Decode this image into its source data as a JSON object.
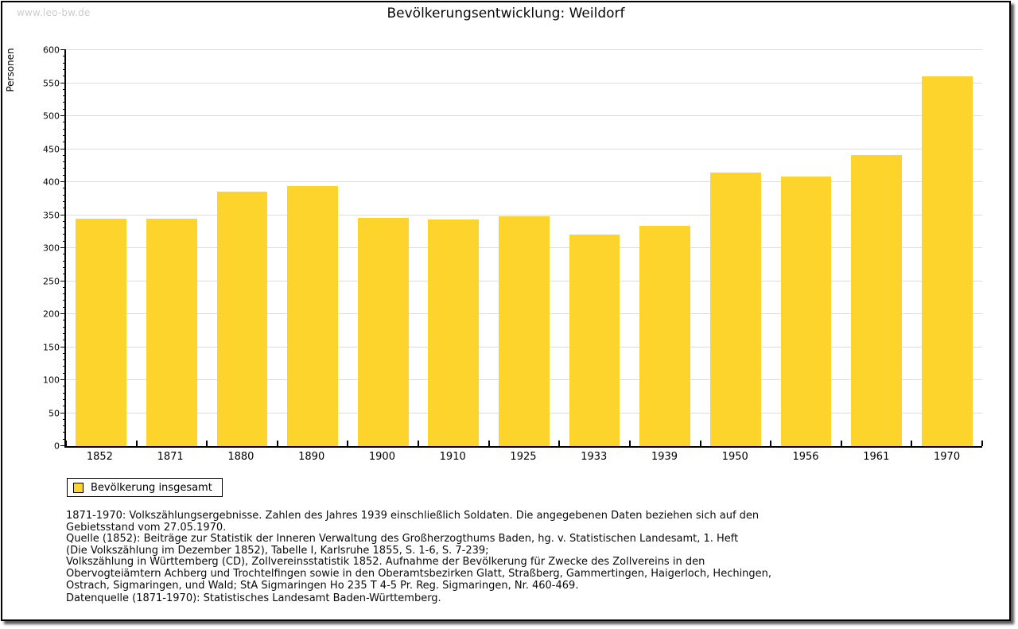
{
  "watermark": "www.leo-bw.de",
  "title": "Bevölkerungsentwicklung: Weildorf",
  "chart_data": {
    "type": "bar",
    "title": "Bevölkerungsentwicklung: Weildorf",
    "xlabel": "",
    "ylabel": "Personen",
    "ylim": [
      0,
      600
    ],
    "ytick_major_step": 50,
    "ytick_minor_step": 10,
    "grid": true,
    "legend_position": "bottom-left",
    "categories": [
      "1852",
      "1871",
      "1880",
      "1890",
      "1900",
      "1910",
      "1925",
      "1933",
      "1939",
      "1950",
      "1956",
      "1961",
      "1970"
    ],
    "series": [
      {
        "name": "Bevölkerung insgesamt",
        "color": "#FCD42C",
        "values": [
          344,
          344,
          385,
          394,
          346,
          343,
          348,
          321,
          334,
          415,
          408,
          441,
          560
        ]
      }
    ]
  },
  "legend": {
    "label": "Bevölkerung insgesamt",
    "swatch_color": "#FCD42C"
  },
  "footnotes": {
    "lines": [
      "1871-1970: Volkszählungsergebnisse. Zahlen des Jahres 1939 einschließlich Soldaten. Die angegebenen Daten beziehen sich auf den",
      "Gebietsstand vom 27.05.1970.",
      "Quelle (1852): Beiträge zur Statistik der Inneren Verwaltung des Großherzogthums Baden, hg. v. Statistischen Landesamt, 1. Heft",
      "(Die Volkszählung im Dezember 1852), Tabelle I, Karlsruhe 1855, S. 1-6, S. 7-239;",
      "Volkszählung in Württemberg (CD), Zollvereinsstatistik 1852. Aufnahme der Bevölkerung für Zwecke des Zollvereins in den",
      "Obervogteiämtern Achberg und Trochtelfingen sowie in den Oberamtsbezirken Glatt, Straßberg, Gammertingen, Haigerloch, Hechingen,",
      "Ostrach, Sigmaringen, und Wald; StA Sigmaringen Ho 235 T 4-5 Pr. Reg. Sigmaringen, Nr. 460-469."
    ],
    "datasource": "Datenquelle (1871-1970): Statistisches Landesamt Baden-Württemberg."
  },
  "colors": {
    "bar": "#FCD42C",
    "gridline": "#DCDCDC",
    "axis": "#000000",
    "watermark": "#CCCCCC",
    "frame_border": "#000000",
    "background": "#FFFFFF"
  }
}
